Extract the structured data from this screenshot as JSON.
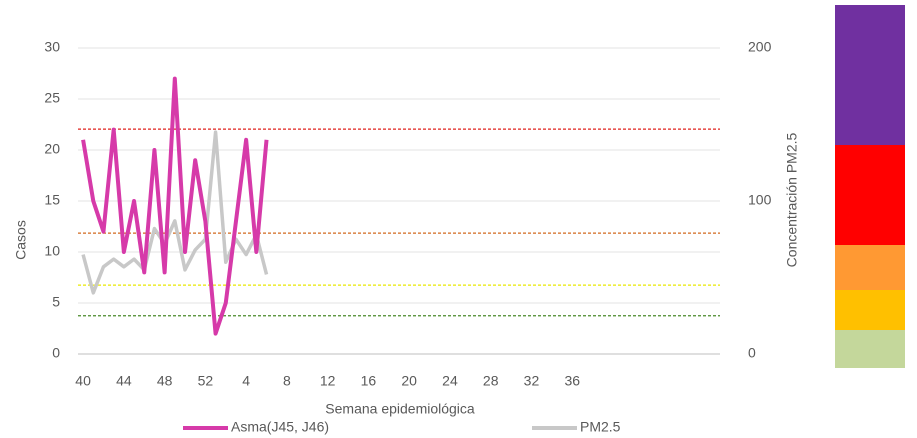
{
  "chart_data": {
    "type": "line",
    "y_label": "Casos",
    "y2_label": "Concentración PM2.5",
    "x_label": "Semana epidemiológica",
    "categories": [
      "40",
      null,
      null,
      null,
      "44",
      null,
      null,
      null,
      "48",
      null,
      null,
      null,
      "52",
      null,
      null,
      null,
      "4",
      null,
      null,
      null,
      "8",
      null,
      null,
      null,
      "12",
      null,
      null,
      null,
      "16",
      null,
      null,
      null,
      "20",
      null,
      null,
      null,
      "24",
      null,
      null,
      null,
      "28",
      null,
      null,
      null,
      "32",
      null,
      null,
      null,
      "36",
      null,
      null,
      null,
      null,
      null,
      null,
      null,
      null,
      null,
      null,
      null,
      null,
      null,
      null
    ],
    "series": [
      {
        "name": "Asma(J45, J46)",
        "color": "#d63aa9",
        "values": [
          21,
          15,
          12,
          22,
          10,
          15,
          8,
          20,
          8,
          27,
          10,
          19,
          13,
          2,
          5,
          13,
          21,
          10,
          21,
          null,
          null,
          null,
          null,
          null,
          null,
          null,
          null,
          null,
          null,
          null,
          null,
          null,
          null,
          null,
          null,
          null,
          null,
          null,
          null,
          null,
          null,
          null,
          null,
          null,
          null,
          null,
          null,
          null,
          null,
          null,
          null,
          null,
          null,
          null,
          null,
          null,
          null,
          null,
          null,
          null,
          null,
          null,
          null
        ]
      },
      {
        "name": "PM2.5",
        "color": "#c8c8c8",
        "axis": "y2",
        "values": [
          65,
          40,
          57,
          62,
          57,
          62,
          55,
          82,
          72,
          87,
          55,
          68,
          75,
          145,
          60,
          75,
          65,
          78,
          52,
          null,
          null,
          null,
          null,
          null,
          null,
          null,
          null,
          null,
          null,
          null,
          null,
          null,
          null,
          null,
          null,
          null,
          null,
          null,
          null,
          null,
          null,
          null,
          null,
          null,
          null,
          null,
          null,
          null,
          null,
          null,
          null,
          null,
          null,
          null,
          null,
          null,
          null,
          null,
          null,
          null,
          null,
          null,
          null
        ]
      }
    ],
    "ylim": [
      0,
      30
    ],
    "yticks": [
      0,
      5,
      10,
      15,
      20,
      25,
      30
    ],
    "y2lim": [
      0,
      200
    ],
    "y2ticks": [
      0,
      100,
      200
    ],
    "grid": true,
    "reference_lines": [
      {
        "value": 147,
        "color": "#e0201c",
        "axis": "y2"
      },
      {
        "value": 79,
        "color": "#d2691e",
        "axis": "y2"
      },
      {
        "value": 45,
        "color": "#e8e800",
        "axis": "y2"
      },
      {
        "value": 25,
        "color": "#4a8a2a",
        "axis": "y2"
      }
    ],
    "color_scale": [
      "#7030a0",
      "#ff0000",
      "#ff9933",
      "#ffc000",
      "#c4d79b"
    ]
  }
}
